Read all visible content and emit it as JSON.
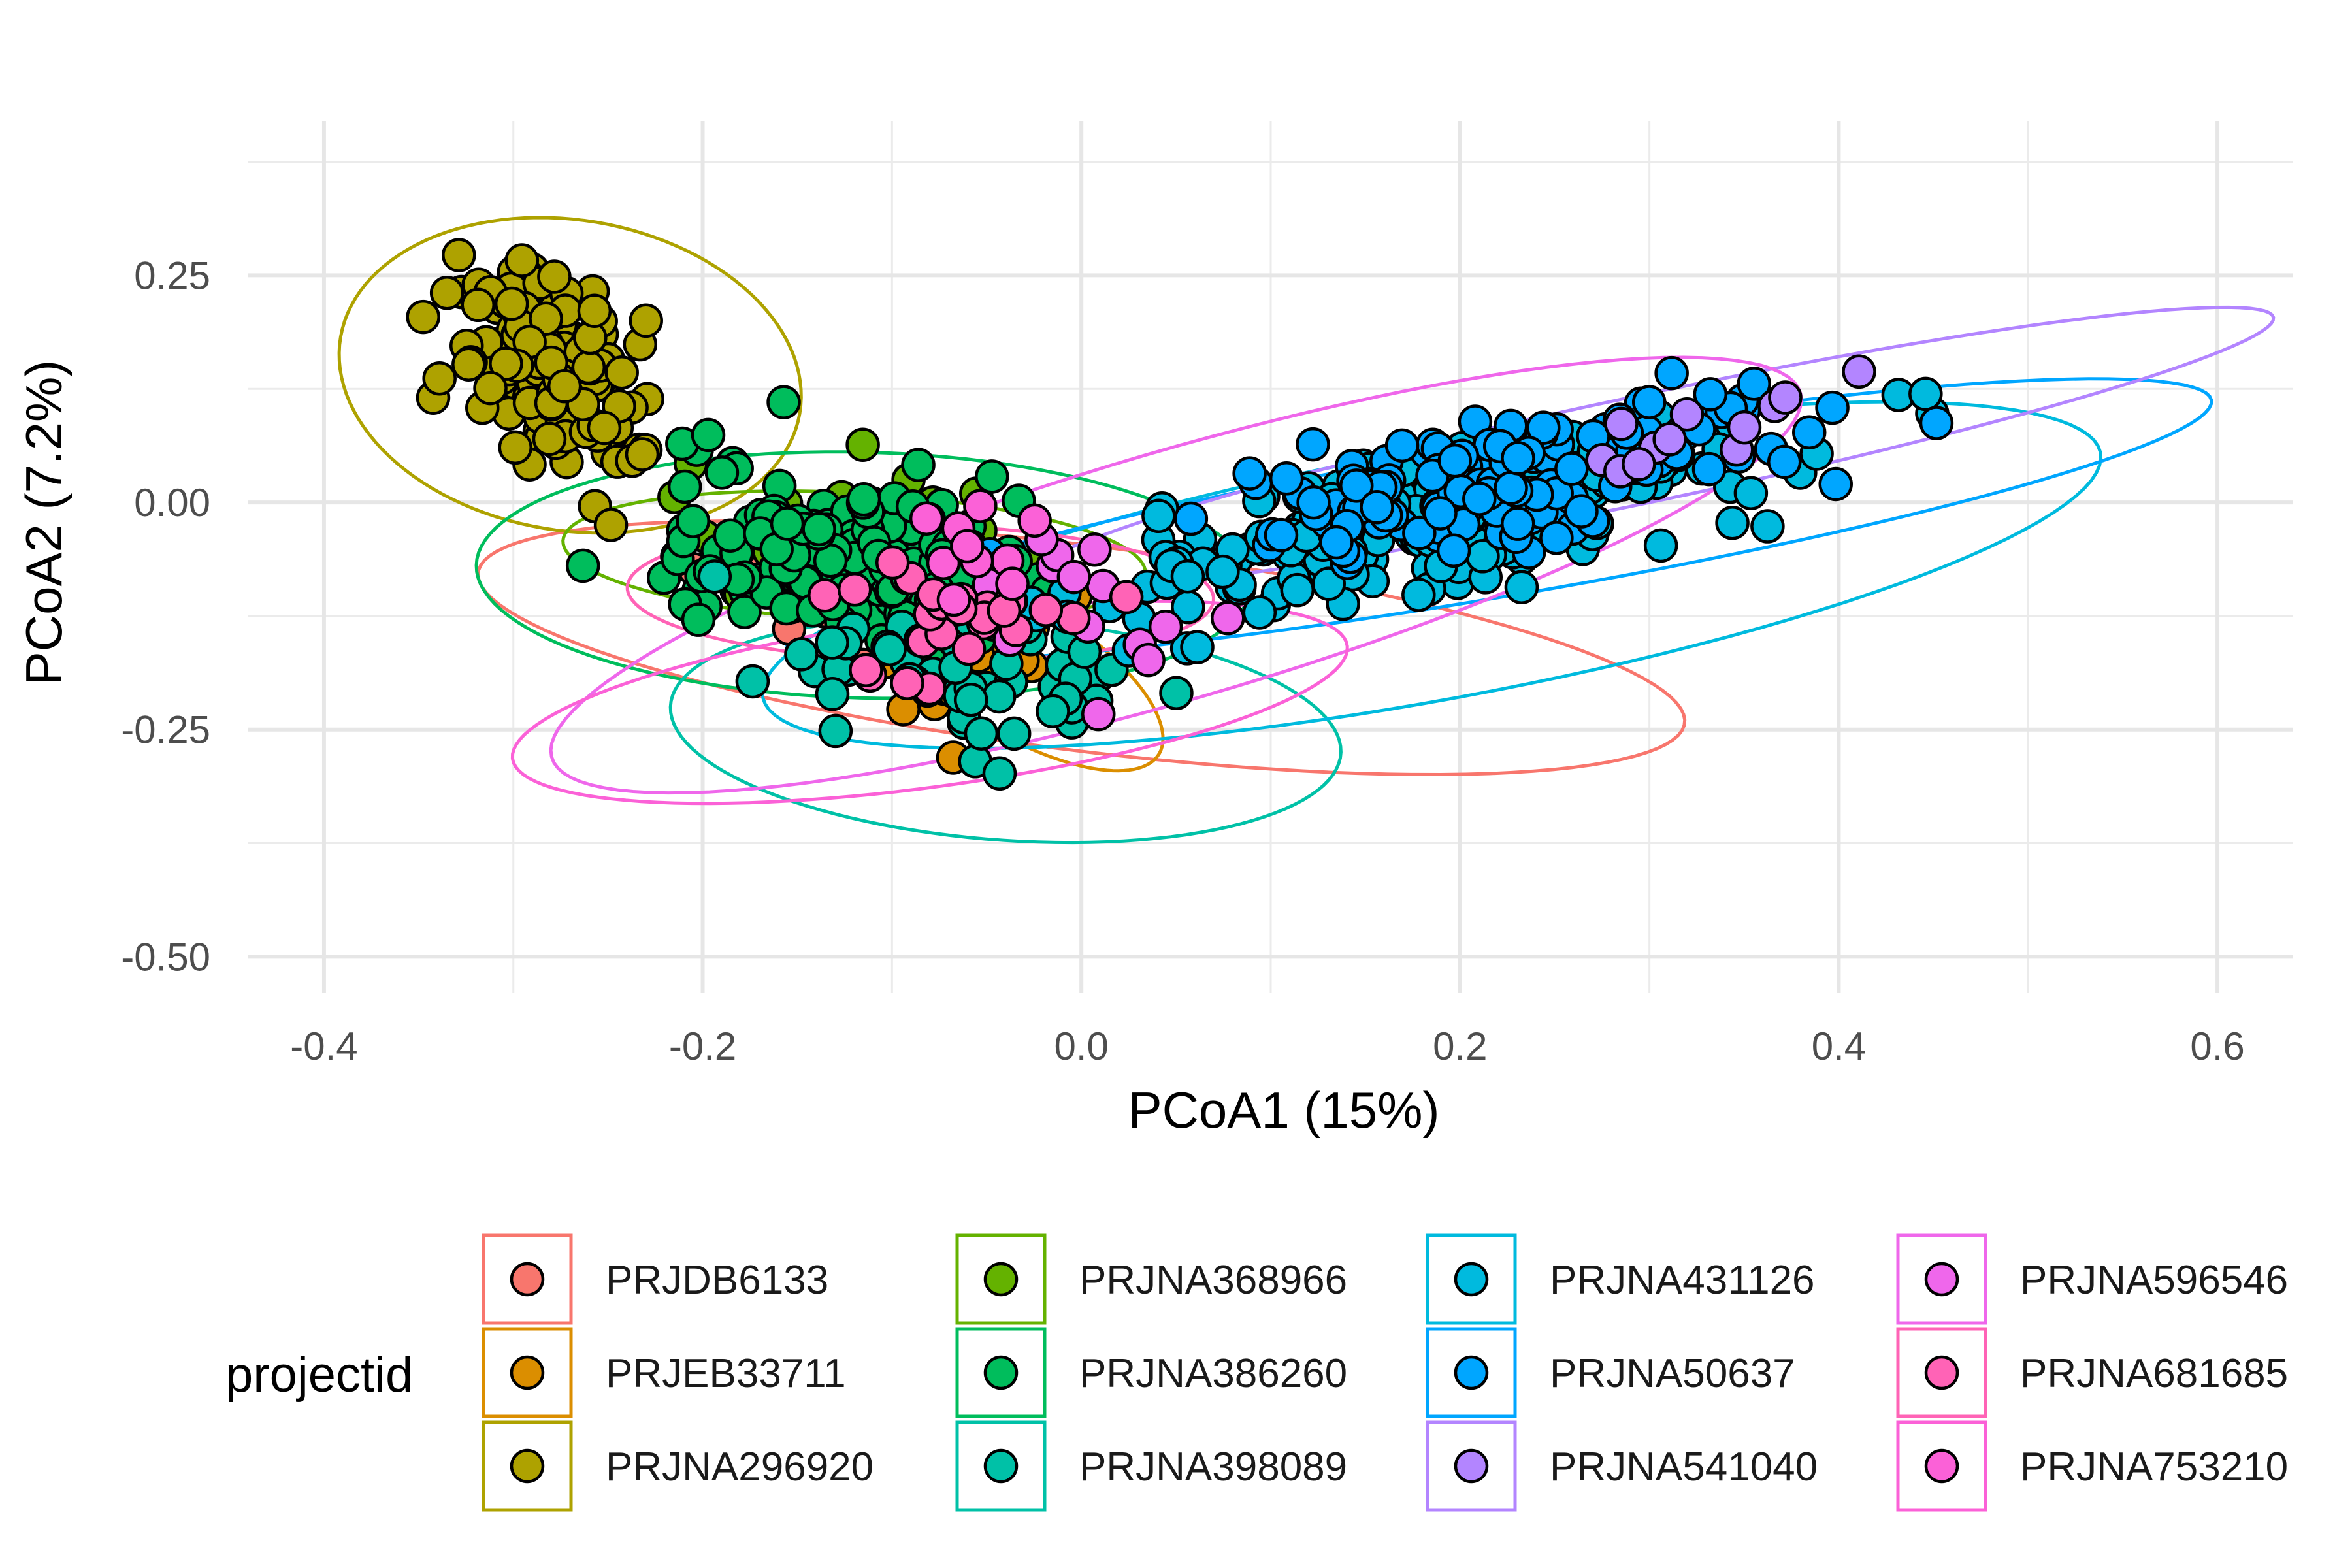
{
  "chart_data": {
    "type": "scatter",
    "xlabel": "PCoA1 (15%)",
    "ylabel": "PCoA2 (7.2%)",
    "xlim": [
      -0.44,
      0.64
    ],
    "ylim": [
      -0.54,
      0.42
    ],
    "x_ticks": [
      {
        "value": -0.4,
        "label": "-0.4"
      },
      {
        "value": -0.2,
        "label": "-0.2"
      },
      {
        "value": 0.0,
        "label": "0.0"
      },
      {
        "value": 0.2,
        "label": "0.2"
      },
      {
        "value": 0.4,
        "label": "0.4"
      },
      {
        "value": 0.6,
        "label": "0.6"
      }
    ],
    "y_ticks": [
      {
        "value": -0.5,
        "label": "-0.50"
      },
      {
        "value": -0.25,
        "label": "-0.25"
      },
      {
        "value": 0.0,
        "label": "0.00"
      },
      {
        "value": 0.25,
        "label": "0.25"
      }
    ],
    "grid": true,
    "legend": {
      "title": "projectid",
      "placement": "bottom",
      "columns": 4
    },
    "series": [
      {
        "name": "PRJDB6133",
        "color": "#F8766D",
        "cluster": {
          "cx": -0.12,
          "cy": -0.09,
          "sx": 0.08,
          "sy": 0.07,
          "rot": -0.4,
          "n": 40
        },
        "ellipse": {
          "cx": 0.0,
          "cy": -0.16,
          "rx": 0.33,
          "ry": 0.11,
          "angle_deg": -16
        }
      },
      {
        "name": "PRJEB33711",
        "color": "#DB8E00",
        "cluster": {
          "cx": -0.05,
          "cy": -0.18,
          "sx": 0.04,
          "sy": 0.07,
          "rot": -0.5,
          "n": 35
        },
        "ellipse": {
          "cx": -0.035,
          "cy": -0.18,
          "rx": 0.13,
          "ry": 0.05,
          "angle_deg": -60
        }
      },
      {
        "name": "PRJNA296920",
        "color": "#AEA200",
        "cluster": {
          "cx": -0.28,
          "cy": 0.15,
          "sx": 0.045,
          "sy": 0.1,
          "rot": 0.2,
          "n": 150
        },
        "ellipse": {
          "cx": -0.27,
          "cy": 0.14,
          "rx": 0.12,
          "ry": 0.175,
          "angle_deg": 10
        }
      },
      {
        "name": "PRJNA368966",
        "color": "#64B200",
        "cluster": {
          "cx": -0.12,
          "cy": -0.04,
          "sx": 0.08,
          "sy": 0.08,
          "rot": -0.3,
          "n": 20
        },
        "ellipse": {
          "cx": -0.12,
          "cy": -0.06,
          "rx": 0.155,
          "ry": 0.07,
          "angle_deg": -8
        }
      },
      {
        "name": "PRJNA386260",
        "color": "#00BD5C",
        "cluster": {
          "cx": -0.13,
          "cy": -0.06,
          "sx": 0.09,
          "sy": 0.08,
          "rot": -0.3,
          "n": 170
        },
        "ellipse": {
          "cx": -0.115,
          "cy": -0.08,
          "rx": 0.205,
          "ry": 0.135,
          "angle_deg": -5
        }
      },
      {
        "name": "PRJNA398089",
        "color": "#00C1A7",
        "cluster": {
          "cx": -0.05,
          "cy": -0.2,
          "sx": 0.1,
          "sy": 0.07,
          "rot": -0.5,
          "n": 55
        },
        "ellipse": {
          "cx": -0.04,
          "cy": -0.25,
          "rx": 0.18,
          "ry": 0.12,
          "angle_deg": -14
        }
      },
      {
        "name": "PRJNA431126",
        "color": "#00BADE",
        "cluster": {
          "cx": 0.18,
          "cy": -0.02,
          "sx": 0.16,
          "sy": 0.06,
          "rot": 0.42,
          "n": 230
        },
        "ellipse": {
          "cx": 0.185,
          "cy": -0.08,
          "rx": 0.38,
          "ry": 0.13,
          "angle_deg": 23
        }
      },
      {
        "name": "PRJNA50637",
        "color": "#00A6FF",
        "cluster": {
          "cx": 0.22,
          "cy": 0.02,
          "sx": 0.16,
          "sy": 0.06,
          "rot": 0.42,
          "n": 140
        },
        "ellipse": {
          "cx": 0.22,
          "cy": -0.02,
          "rx": 0.4,
          "ry": 0.08,
          "angle_deg": 20
        }
      },
      {
        "name": "PRJNA541040",
        "color": "#B385FF",
        "cluster": {
          "cx": 0.3,
          "cy": 0.05,
          "sx": 0.1,
          "sy": 0.04,
          "rot": 0.4,
          "n": 12
        },
        "ellipse": {
          "cx": 0.3,
          "cy": 0.06,
          "rx": 0.36,
          "ry": 0.055,
          "angle_deg": 24
        }
      },
      {
        "name": "PRJNA596546",
        "color": "#EF67EB",
        "cluster": {
          "cx": 0.0,
          "cy": -0.1,
          "sx": 0.06,
          "sy": 0.08,
          "rot": 0.2,
          "n": 15
        },
        "ellipse": {
          "cx": 0.05,
          "cy": -0.08,
          "rx": 0.39,
          "ry": 0.12,
          "angle_deg": 34
        }
      },
      {
        "name": "PRJNA681685",
        "color": "#FF63B6",
        "cluster": {
          "cx": -0.07,
          "cy": -0.12,
          "sx": 0.07,
          "sy": 0.07,
          "rot": -0.2,
          "n": 25
        },
        "ellipse": {
          "cx": -0.085,
          "cy": -0.1,
          "rx": 0.155,
          "ry": 0.075,
          "angle_deg": -3
        }
      },
      {
        "name": "PRJNA753210",
        "color": "#FB61D7",
        "cluster": {
          "cx": -0.05,
          "cy": -0.05,
          "sx": 0.05,
          "sy": 0.05,
          "rot": 0.0,
          "n": 10
        },
        "ellipse": {
          "cx": -0.08,
          "cy": -0.22,
          "rx": 0.23,
          "ry": 0.09,
          "angle_deg": 18
        }
      }
    ]
  }
}
